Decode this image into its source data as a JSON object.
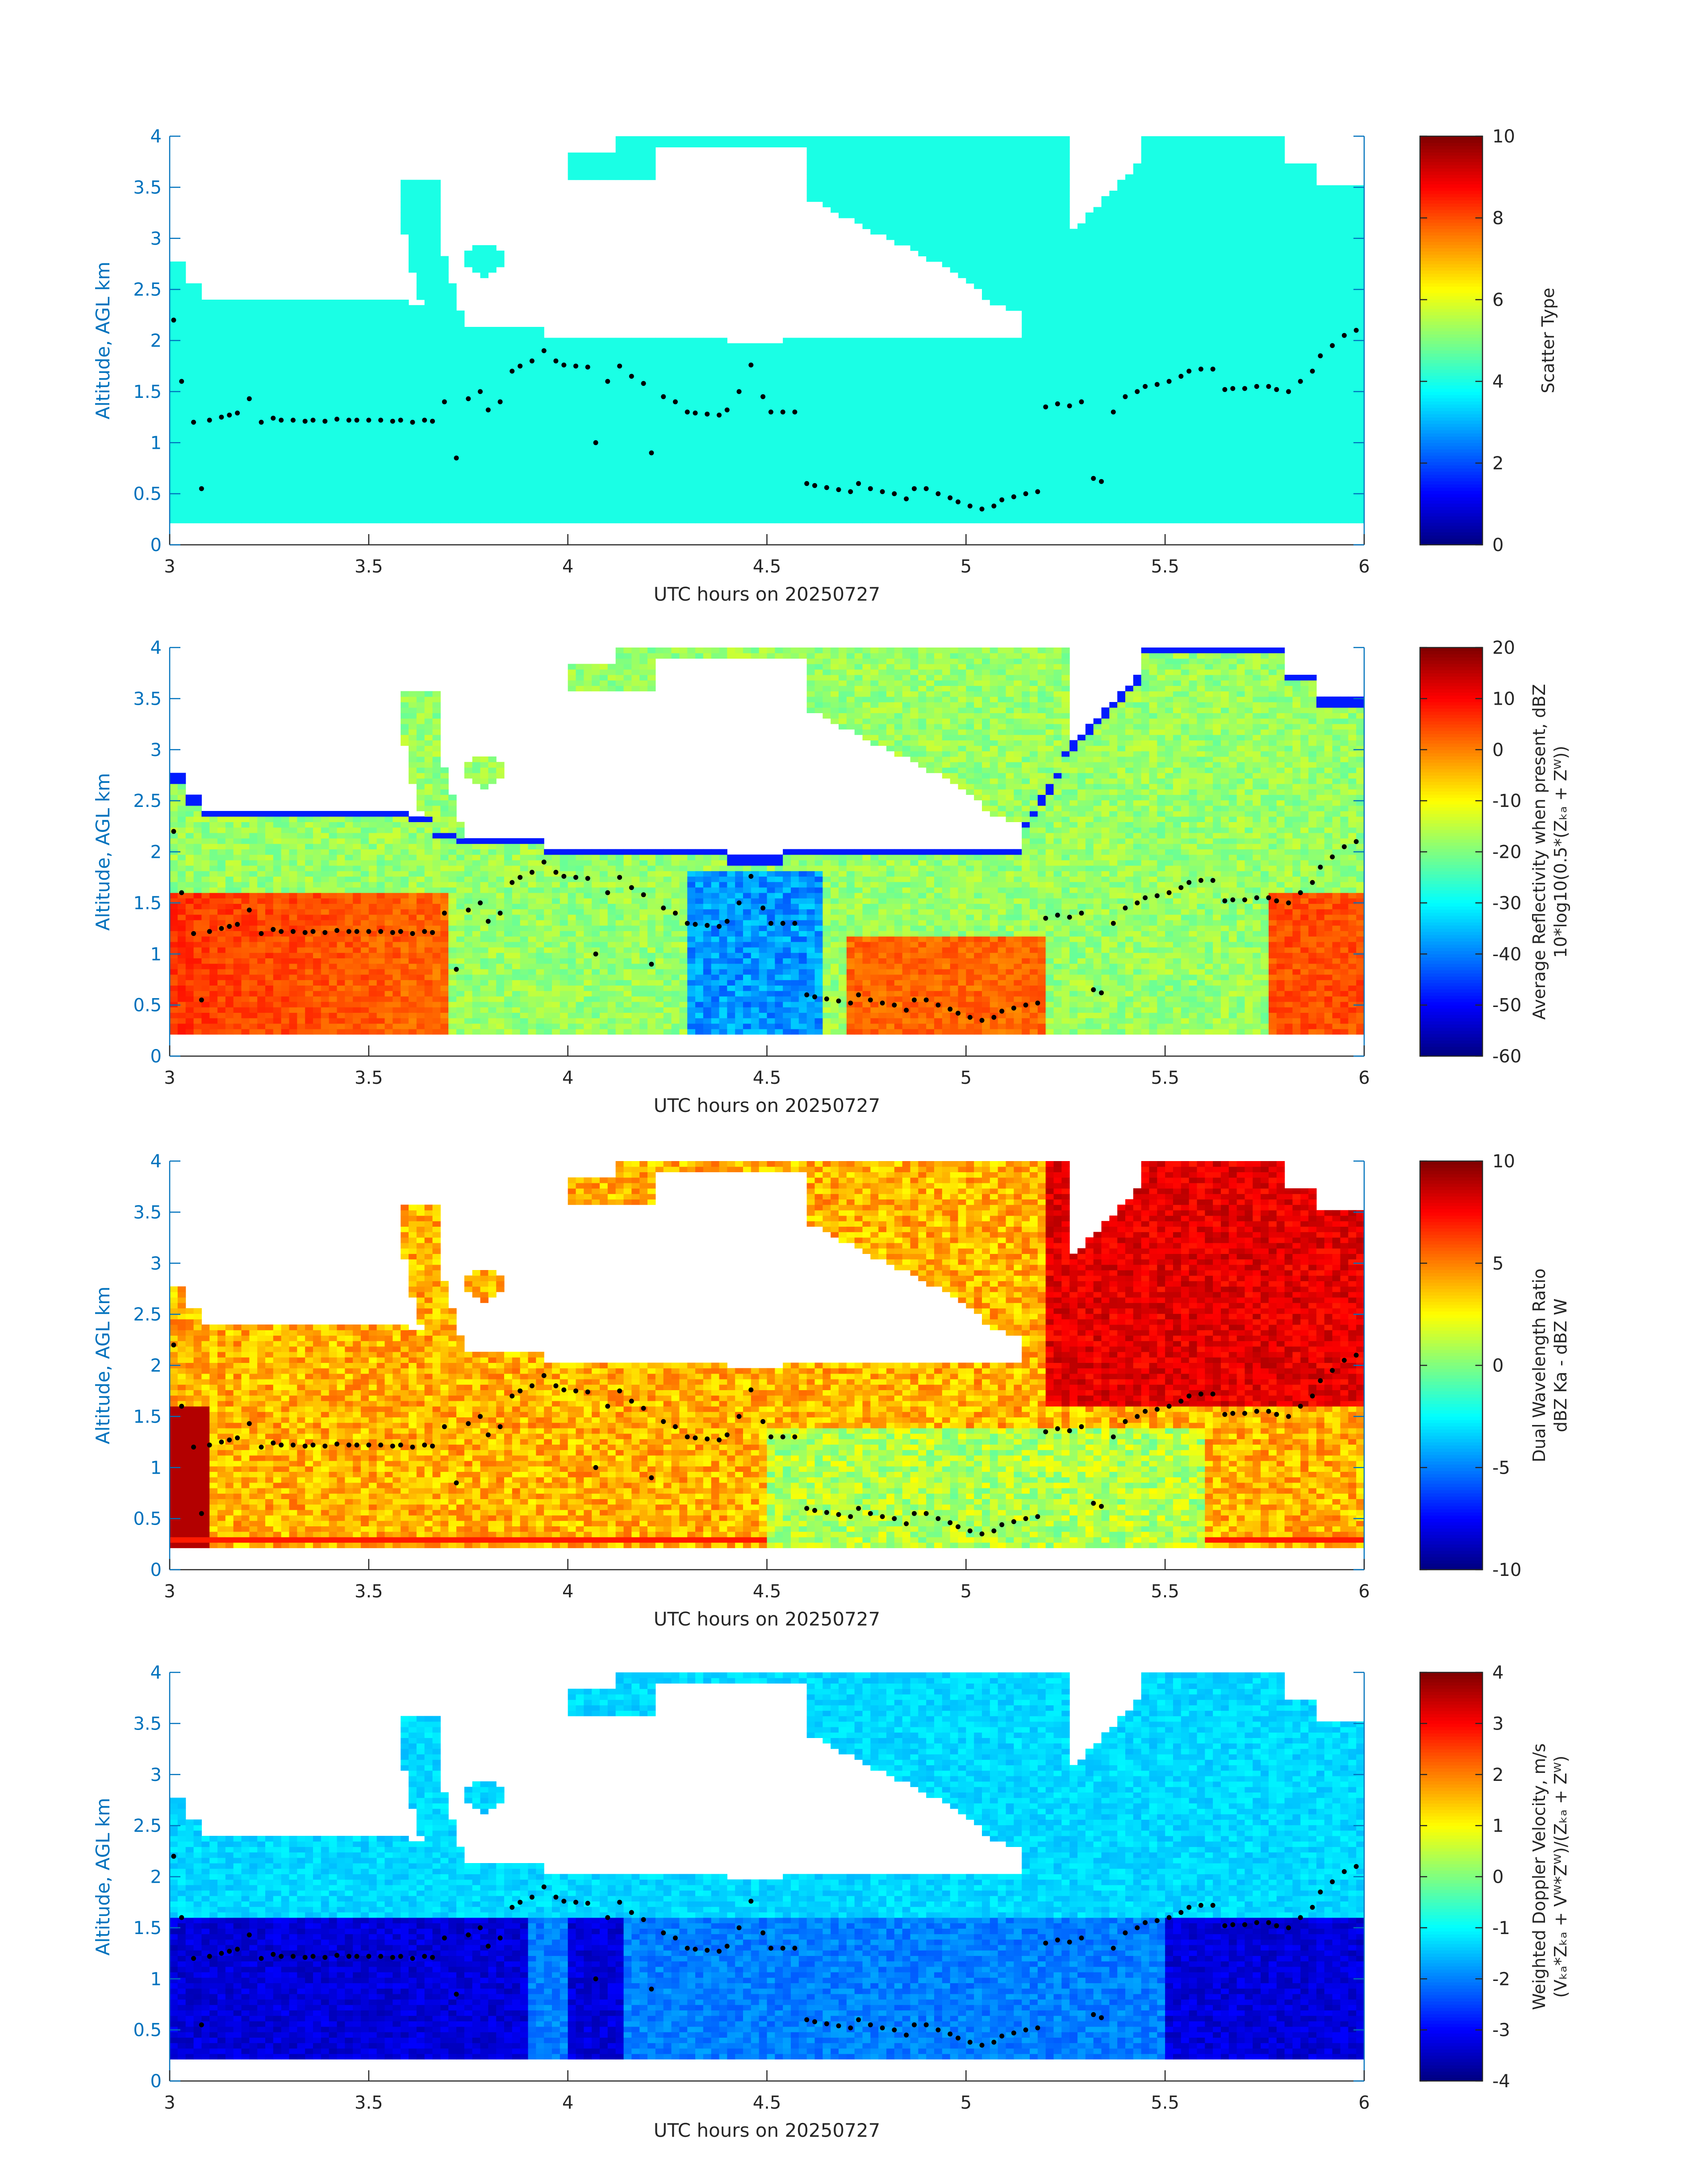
{
  "chart_data": [
    {
      "type": "heatmap",
      "title": "",
      "xlabel": "UTC hours on 20250727",
      "ylabel": "Altitude, AGL km",
      "xlim": [
        3,
        6
      ],
      "ylim": [
        0,
        4
      ],
      "xticks": [
        "3",
        "3.5",
        "4",
        "4.5",
        "5",
        "5.5",
        "6"
      ],
      "yticks": [
        "0",
        "0.5",
        "1",
        "1.5",
        "2",
        "2.5",
        "3",
        "3.5",
        "4"
      ],
      "colormap": "jet",
      "colorbar": {
        "label_lines": [
          "Scatter Type"
        ],
        "ticks": [
          "0",
          "2",
          "4",
          "6",
          "8",
          "10"
        ],
        "range": [
          0,
          10
        ]
      },
      "field_summary": "nearly uniform value ~4 (cyan) wherever echo is present"
    },
    {
      "type": "heatmap",
      "title": "",
      "xlabel": "UTC hours on 20250727",
      "ylabel": "Altitude, AGL km",
      "xlim": [
        3,
        6
      ],
      "ylim": [
        0,
        4
      ],
      "xticks": [
        "3",
        "3.5",
        "4",
        "4.5",
        "5",
        "5.5",
        "6"
      ],
      "yticks": [
        "0",
        "0.5",
        "1",
        "1.5",
        "2",
        "2.5",
        "3",
        "3.5",
        "4"
      ],
      "colormap": "jet",
      "colorbar": {
        "label_lines": [
          "Average Reflectivity when present, dBZ",
          "10*log10(0.5*(Zₖₐ + Zᵂ))"
        ],
        "ticks": [
          "-60",
          "-50",
          "-40",
          "-30",
          "-20",
          "-10",
          "0",
          "10",
          "20"
        ],
        "range": [
          -60,
          20
        ]
      },
      "field_summary": "strong reflectivity (~5 to 10 dBZ) below 1.6 km from 3.0-3.7 h, weak edges (~-50 dBZ) at cloud boundaries"
    },
    {
      "type": "heatmap",
      "title": "",
      "xlabel": "UTC hours on 20250727",
      "ylabel": "Altitude, AGL km",
      "xlim": [
        3,
        6
      ],
      "ylim": [
        0,
        4
      ],
      "xticks": [
        "3",
        "3.5",
        "4",
        "4.5",
        "5",
        "5.5",
        "6"
      ],
      "yticks": [
        "0",
        "0.5",
        "1",
        "1.5",
        "2",
        "2.5",
        "3",
        "3.5",
        "4"
      ],
      "colormap": "jet",
      "colorbar": {
        "label_lines": [
          "Dual Wavelength Ratio",
          "dBZ Ka - dBZ W"
        ],
        "ticks": [
          "-10",
          "-5",
          "0",
          "5",
          "10"
        ],
        "range": [
          -10,
          10
        ]
      },
      "field_summary": "mostly 3 to 6 dB, up to ~9 dB in the upper cloud after 5.2 h and near 3.0 h at low levels"
    },
    {
      "type": "heatmap",
      "title": "",
      "xlabel": "UTC hours on 20250727",
      "ylabel": "Altitude, AGL km",
      "xlim": [
        3,
        6
      ],
      "ylim": [
        0,
        4
      ],
      "xticks": [
        "3",
        "3.5",
        "4",
        "4.5",
        "5",
        "5.5",
        "6"
      ],
      "yticks": [
        "0",
        "0.5",
        "1",
        "1.5",
        "2",
        "2.5",
        "3",
        "3.5",
        "4"
      ],
      "colormap": "jet",
      "colorbar": {
        "label_lines": [
          "Weighted Doppler Velocity, m/s",
          "(Vₖₐ*Zₖₐ + Vᵂ*Zᵂ)/(Zₖₐ + Zᵂ)"
        ],
        "ticks": [
          "-4",
          "-3",
          "-2",
          "-1",
          "0",
          "1",
          "2",
          "3",
          "4"
        ],
        "range": [
          -4,
          4
        ]
      },
      "field_summary": "mostly -1 to -1.5 m/s aloft, -3 to -4 m/s below 1.6 km in rain shafts"
    }
  ],
  "overlay_points": {
    "description": "black dots",
    "x": [
      3.01,
      3.03,
      3.06,
      3.08,
      3.1,
      3.13,
      3.15,
      3.17,
      3.2,
      3.23,
      3.26,
      3.28,
      3.31,
      3.34,
      3.36,
      3.39,
      3.42,
      3.45,
      3.47,
      3.5,
      3.53,
      3.56,
      3.58,
      3.61,
      3.64,
      3.66,
      3.69,
      3.72,
      3.75,
      3.78,
      3.8,
      3.83,
      3.86,
      3.88,
      3.91,
      3.94,
      3.97,
      3.99,
      4.02,
      4.05,
      4.07,
      4.1,
      4.13,
      4.16,
      4.19,
      4.21,
      4.24,
      4.27,
      4.3,
      4.32,
      4.35,
      4.38,
      4.4,
      4.43,
      4.46,
      4.49,
      4.51,
      4.54,
      4.57,
      4.6,
      4.62,
      4.65,
      4.68,
      4.71,
      4.73,
      4.76,
      4.79,
      4.82,
      4.85,
      4.87,
      4.9,
      4.93,
      4.96,
      4.98,
      5.01,
      5.04,
      5.07,
      5.09,
      5.12,
      5.15,
      5.18,
      5.2,
      5.23,
      5.26,
      5.29,
      5.32,
      5.34,
      5.37,
      5.4,
      5.43,
      5.45,
      5.48,
      5.51,
      5.54,
      5.56,
      5.59,
      5.62,
      5.65,
      5.67,
      5.7,
      5.73,
      5.76,
      5.78,
      5.81,
      5.84,
      5.87,
      5.89,
      5.92,
      5.95,
      5.98
    ],
    "y": [
      2.2,
      1.6,
      1.2,
      0.55,
      1.22,
      1.25,
      1.27,
      1.29,
      1.43,
      1.2,
      1.24,
      1.22,
      1.22,
      1.21,
      1.22,
      1.21,
      1.23,
      1.22,
      1.22,
      1.22,
      1.22,
      1.21,
      1.22,
      1.2,
      1.22,
      1.21,
      1.4,
      0.85,
      1.43,
      1.5,
      1.32,
      1.4,
      1.7,
      1.75,
      1.8,
      1.9,
      1.8,
      1.76,
      1.75,
      1.74,
      1.0,
      1.6,
      1.75,
      1.65,
      1.58,
      0.9,
      1.45,
      1.4,
      1.3,
      1.29,
      1.28,
      1.27,
      1.32,
      1.5,
      1.76,
      1.45,
      1.3,
      1.3,
      1.3,
      0.6,
      0.58,
      0.56,
      0.54,
      0.52,
      0.6,
      0.55,
      0.52,
      0.5,
      0.45,
      0.55,
      0.55,
      0.5,
      0.46,
      0.42,
      0.38,
      0.35,
      0.38,
      0.44,
      0.47,
      0.5,
      0.52,
      1.35,
      1.38,
      1.36,
      1.4,
      0.65,
      0.62,
      1.3,
      1.45,
      1.5,
      1.55,
      1.57,
      1.6,
      1.65,
      1.7,
      1.72,
      1.72,
      1.52,
      1.53,
      1.53,
      1.55,
      1.55,
      1.52,
      1.5,
      1.6,
      1.7,
      1.85,
      1.95,
      2.05,
      2.1
    ]
  }
}
